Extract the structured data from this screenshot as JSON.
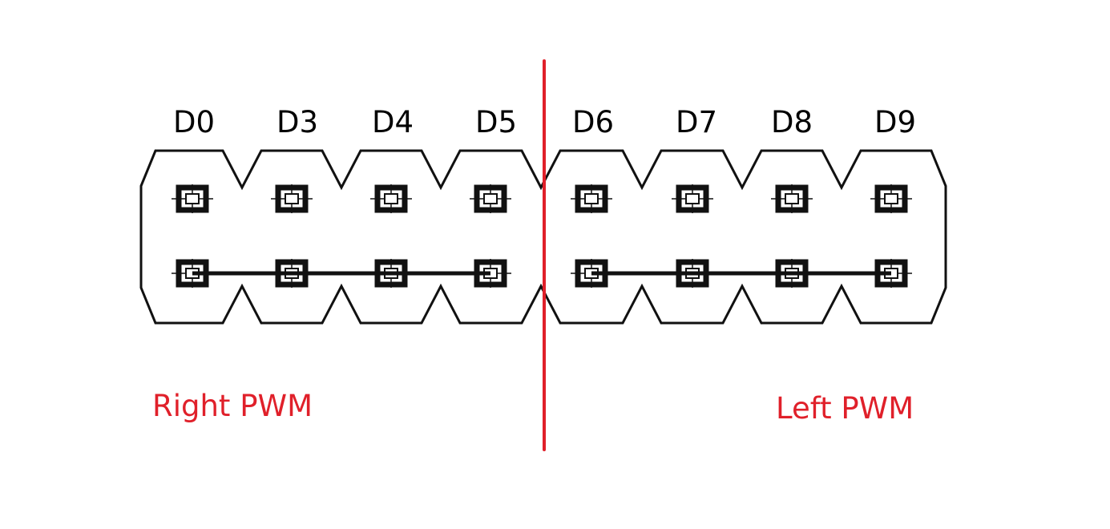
{
  "header": {
    "pins": [
      {
        "label": "D0"
      },
      {
        "label": "D3"
      },
      {
        "label": "D4"
      },
      {
        "label": "D5"
      },
      {
        "label": "D6"
      },
      {
        "label": "D7"
      },
      {
        "label": "D8"
      },
      {
        "label": "D9"
      }
    ],
    "rows": 2,
    "jumpers": [
      {
        "from": "D0",
        "to": "D5"
      },
      {
        "from": "D6",
        "to": "D9"
      }
    ]
  },
  "groups": {
    "right_label": "Right PWM",
    "left_label": "Left PWM"
  },
  "colors": {
    "outline": "#111111",
    "divider": "#e0202a",
    "group_text": "#e0202a",
    "pin_text": "#000000"
  }
}
